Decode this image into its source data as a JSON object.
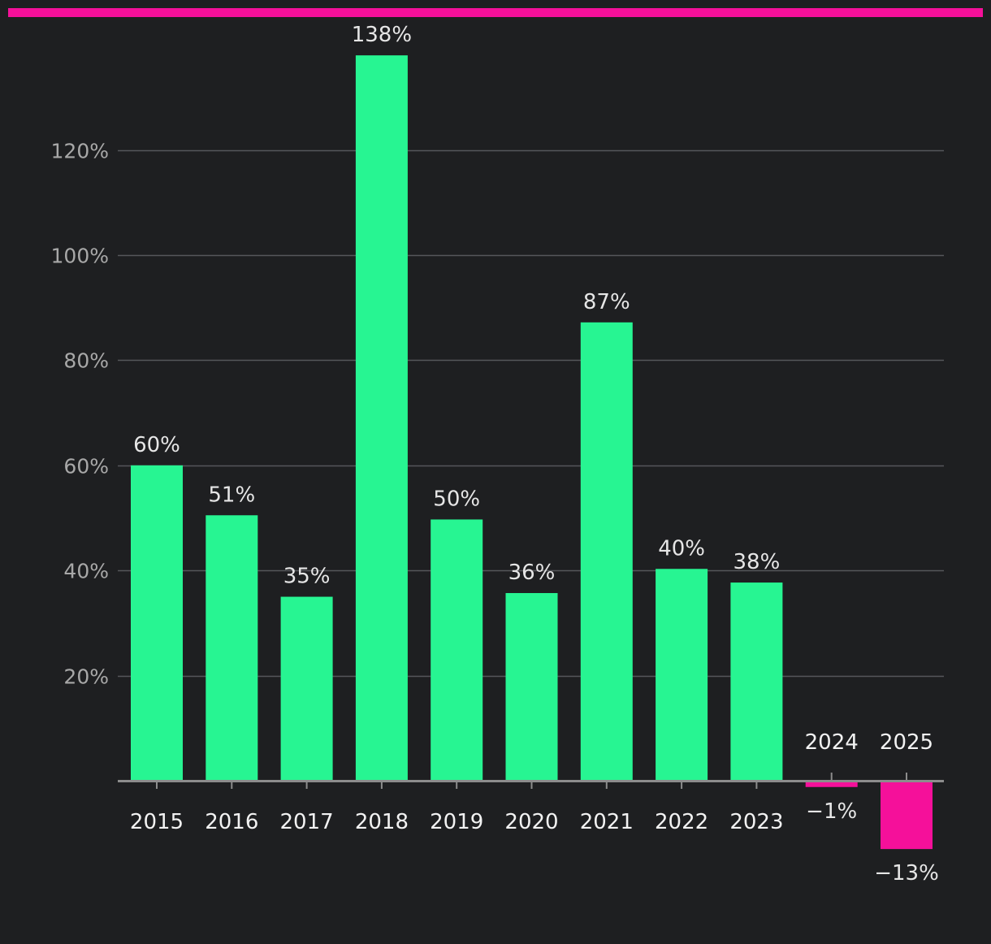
{
  "colors": {
    "background": "#1e1f21",
    "positive": "#27f592",
    "negative": "#f5109a",
    "accent_bar": "#f5109a",
    "grid": "#55575b",
    "axis": "#8c8c8c"
  },
  "chart_data": {
    "type": "bar",
    "title": "",
    "xlabel": "",
    "ylabel": "",
    "categories": [
      "2015",
      "2016",
      "2017",
      "2018",
      "2019",
      "2020",
      "2021",
      "2022",
      "2023",
      "2024",
      "2025"
    ],
    "values": [
      60,
      50.5,
      35,
      138,
      49.7,
      35.7,
      87.2,
      40.3,
      37.7,
      -1.2,
      -13
    ],
    "value_labels": [
      "60%",
      "51%",
      "35%",
      "138%",
      "50%",
      "36%",
      "87%",
      "40%",
      "38%",
      "−1%",
      "−13%"
    ],
    "ylim": [
      -13,
      138
    ],
    "yticks": [
      20,
      40,
      60,
      80,
      100,
      120
    ],
    "ytick_labels": [
      "20%",
      "40%",
      "60%",
      "80%",
      "100%",
      "120%"
    ],
    "grid": true
  }
}
